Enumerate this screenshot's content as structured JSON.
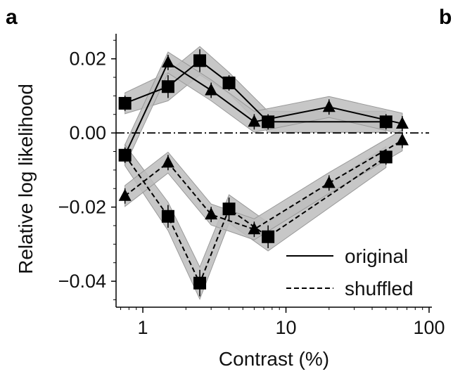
{
  "panel_labels": [
    "a",
    "b"
  ],
  "chart_data": {
    "type": "line",
    "xscale": "log",
    "xlabel": "Contrast (%)",
    "ylabel": "Relative log likelihood",
    "xlim": [
      0.65,
      100
    ],
    "ylim": [
      -0.047,
      0.026
    ],
    "x_ticks": [
      1,
      10,
      100
    ],
    "x_tick_labels": [
      "1",
      "10",
      "100"
    ],
    "y_ticks": [
      0.02,
      0.0,
      -0.02,
      -0.04
    ],
    "y_tick_labels": [
      "0.02",
      "0.00",
      "−0.02",
      "−0.04"
    ],
    "reference_line": {
      "y": 0.0,
      "style": "dash-dot"
    },
    "grid": false,
    "legend": {
      "position": "bottom-right",
      "entries": [
        "original",
        "shuffled"
      ]
    },
    "series": [
      {
        "name": "original",
        "linestyle": "solid",
        "marker": "square",
        "x": [
          0.75,
          1.5,
          2.5,
          4,
          7.5,
          50
        ],
        "y": [
          0.008,
          0.0125,
          0.0195,
          0.0135,
          0.003,
          0.003
        ],
        "err": [
          0.0015,
          0.0025,
          0.0025,
          0.0015,
          0.0015,
          0.0015
        ]
      },
      {
        "name": "original",
        "linestyle": "solid",
        "marker": "triangle",
        "x": [
          0.75,
          1.5,
          3,
          6,
          20,
          65
        ],
        "y": [
          -0.006,
          0.019,
          0.0115,
          0.003,
          0.007,
          0.0025
        ],
        "err": [
          0.0015,
          0.0015,
          0.0015,
          0.0015,
          0.0015,
          0.0015
        ]
      },
      {
        "name": "shuffled",
        "linestyle": "dashed",
        "marker": "square",
        "x": [
          0.75,
          1.5,
          2.5,
          4,
          7.5,
          50
        ],
        "y": [
          -0.006,
          -0.0225,
          -0.0405,
          -0.0205,
          -0.028,
          -0.0065
        ],
        "err": [
          0.0015,
          0.0025,
          0.003,
          0.0025,
          0.0025,
          0.0015
        ]
      },
      {
        "name": "shuffled",
        "linestyle": "dashed",
        "marker": "triangle",
        "x": [
          0.75,
          1.5,
          3,
          6,
          20,
          65
        ],
        "y": [
          -0.017,
          -0.008,
          -0.022,
          -0.026,
          -0.0135,
          -0.002
        ],
        "err": [
          0.0015,
          0.0015,
          0.0015,
          0.0015,
          0.0015,
          0.0015
        ]
      }
    ]
  }
}
